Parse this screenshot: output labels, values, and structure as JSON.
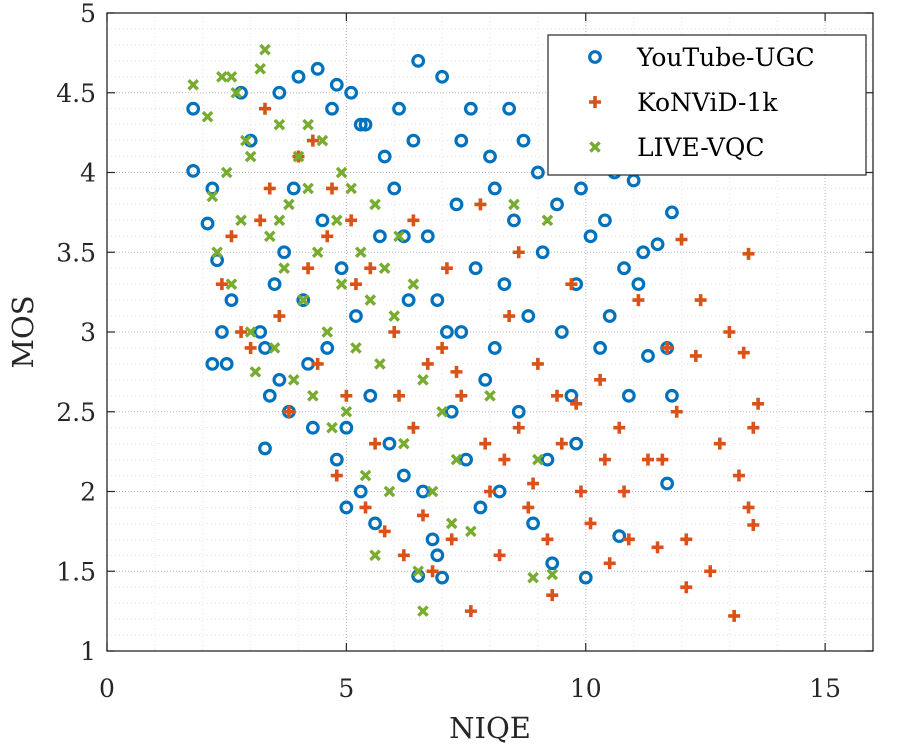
{
  "chart_data": {
    "type": "scatter",
    "title": "",
    "xlabel": "NIQE",
    "ylabel": "MOS",
    "xlim": [
      0,
      16
    ],
    "ylim": [
      1,
      5
    ],
    "xticks": [
      0,
      5,
      10,
      15
    ],
    "yticks": [
      1,
      1.5,
      2,
      2.5,
      3,
      3.5,
      4,
      4.5,
      5
    ],
    "xtick_labels": [
      "0",
      "5",
      "10",
      "15"
    ],
    "ytick_labels": [
      "1",
      "1.5",
      "2",
      "2.5",
      "3",
      "3.5",
      "4",
      "4.5",
      "5"
    ],
    "grid": "major and minor, dotted",
    "legend_position": "top-right",
    "series": [
      {
        "name": "YouTube-UGC",
        "marker": "circle",
        "color": "#0072BD",
        "points": [
          [
            1.8,
            4.01
          ],
          [
            1.8,
            4.4
          ],
          [
            2.2,
            3.9
          ],
          [
            2.1,
            3.68
          ],
          [
            2.3,
            3.45
          ],
          [
            2.2,
            2.8
          ],
          [
            2.4,
            3.0
          ],
          [
            2.5,
            2.8
          ],
          [
            2.6,
            3.2
          ],
          [
            2.8,
            4.5
          ],
          [
            3.0,
            4.2
          ],
          [
            3.2,
            3.0
          ],
          [
            3.3,
            2.9
          ],
          [
            3.3,
            2.27
          ],
          [
            3.4,
            2.6
          ],
          [
            3.5,
            3.3
          ],
          [
            3.6,
            2.7
          ],
          [
            3.7,
            3.5
          ],
          [
            3.8,
            2.5
          ],
          [
            3.9,
            3.9
          ],
          [
            4.0,
            4.6
          ],
          [
            4.1,
            3.2
          ],
          [
            4.2,
            2.8
          ],
          [
            4.3,
            2.4
          ],
          [
            4.4,
            4.65
          ],
          [
            4.5,
            3.7
          ],
          [
            4.6,
            2.9
          ],
          [
            4.7,
            4.4
          ],
          [
            4.8,
            2.2
          ],
          [
            4.9,
            3.4
          ],
          [
            5.0,
            1.9
          ],
          [
            5.0,
            2.4
          ],
          [
            5.1,
            4.5
          ],
          [
            5.2,
            3.1
          ],
          [
            5.3,
            2.0
          ],
          [
            5.4,
            4.3
          ],
          [
            5.5,
            2.6
          ],
          [
            5.6,
            1.8
          ],
          [
            5.7,
            3.6
          ],
          [
            5.8,
            4.1
          ],
          [
            5.9,
            2.3
          ],
          [
            6.0,
            3.9
          ],
          [
            6.1,
            4.4
          ],
          [
            6.2,
            2.1
          ],
          [
            6.3,
            3.2
          ],
          [
            6.4,
            4.2
          ],
          [
            6.5,
            4.7
          ],
          [
            6.5,
            1.47
          ],
          [
            6.6,
            2.0
          ],
          [
            6.7,
            3.6
          ],
          [
            6.8,
            1.7
          ],
          [
            6.9,
            1.6
          ],
          [
            7.0,
            1.46
          ],
          [
            7.0,
            4.6
          ],
          [
            7.1,
            3.0
          ],
          [
            7.2,
            2.5
          ],
          [
            7.3,
            3.8
          ],
          [
            7.4,
            4.2
          ],
          [
            7.5,
            2.2
          ],
          [
            7.6,
            4.4
          ],
          [
            7.7,
            3.4
          ],
          [
            7.8,
            1.9
          ],
          [
            7.9,
            2.7
          ],
          [
            8.0,
            4.1
          ],
          [
            8.1,
            3.9
          ],
          [
            8.2,
            2.0
          ],
          [
            8.3,
            3.3
          ],
          [
            8.4,
            4.4
          ],
          [
            8.5,
            3.7
          ],
          [
            8.6,
            2.5
          ],
          [
            8.7,
            4.2
          ],
          [
            8.8,
            3.1
          ],
          [
            8.9,
            1.8
          ],
          [
            9.0,
            4.0
          ],
          [
            9.1,
            3.5
          ],
          [
            9.2,
            2.2
          ],
          [
            9.3,
            1.55
          ],
          [
            9.4,
            3.8
          ],
          [
            9.5,
            3.0
          ],
          [
            9.6,
            4.1
          ],
          [
            9.7,
            2.6
          ],
          [
            9.8,
            3.3
          ],
          [
            9.9,
            3.9
          ],
          [
            10.0,
            1.46
          ],
          [
            10.1,
            3.6
          ],
          [
            10.2,
            4.1
          ],
          [
            10.3,
            2.9
          ],
          [
            10.4,
            3.7
          ],
          [
            10.5,
            3.1
          ],
          [
            10.6,
            4.0
          ],
          [
            10.7,
            1.72
          ],
          [
            10.8,
            3.4
          ],
          [
            10.9,
            2.6
          ],
          [
            11.0,
            3.95
          ],
          [
            11.1,
            3.3
          ],
          [
            11.2,
            3.5
          ],
          [
            11.3,
            2.85
          ],
          [
            11.5,
            3.55
          ],
          [
            11.7,
            2.05
          ],
          [
            11.7,
            2.9
          ],
          [
            11.8,
            2.6
          ],
          [
            11.8,
            3.75
          ],
          [
            3.6,
            4.5
          ],
          [
            4.8,
            4.55
          ],
          [
            5.3,
            4.3
          ],
          [
            6.2,
            3.6
          ],
          [
            6.9,
            3.2
          ],
          [
            7.4,
            3.0
          ],
          [
            8.1,
            2.9
          ],
          [
            9.8,
            2.3
          ]
        ]
      },
      {
        "name": "KoNViD-1k",
        "marker": "plus",
        "color": "#D95319",
        "points": [
          [
            2.4,
            3.3
          ],
          [
            2.6,
            3.6
          ],
          [
            2.8,
            3.0
          ],
          [
            3.0,
            2.9
          ],
          [
            3.2,
            3.7
          ],
          [
            3.4,
            3.9
          ],
          [
            3.6,
            3.1
          ],
          [
            3.8,
            2.5
          ],
          [
            4.0,
            4.1
          ],
          [
            4.2,
            3.4
          ],
          [
            4.4,
            2.8
          ],
          [
            4.6,
            3.6
          ],
          [
            4.8,
            2.1
          ],
          [
            5.0,
            2.6
          ],
          [
            5.2,
            3.3
          ],
          [
            5.4,
            1.9
          ],
          [
            5.6,
            2.3
          ],
          [
            5.8,
            1.75
          ],
          [
            6.0,
            3.0
          ],
          [
            6.2,
            1.6
          ],
          [
            6.4,
            2.4
          ],
          [
            6.6,
            1.85
          ],
          [
            6.8,
            1.5
          ],
          [
            7.0,
            2.9
          ],
          [
            7.2,
            1.7
          ],
          [
            7.4,
            2.6
          ],
          [
            7.6,
            1.25
          ],
          [
            7.8,
            3.8
          ],
          [
            8.0,
            2.0
          ],
          [
            8.2,
            1.6
          ],
          [
            8.4,
            3.1
          ],
          [
            8.6,
            2.4
          ],
          [
            8.8,
            1.9
          ],
          [
            9.0,
            2.8
          ],
          [
            9.2,
            1.7
          ],
          [
            9.3,
            1.35
          ],
          [
            9.5,
            2.3
          ],
          [
            9.7,
            3.3
          ],
          [
            9.9,
            2.0
          ],
          [
            10.1,
            1.8
          ],
          [
            10.3,
            2.7
          ],
          [
            10.5,
            1.55
          ],
          [
            10.7,
            2.4
          ],
          [
            10.9,
            1.7
          ],
          [
            11.1,
            3.2
          ],
          [
            11.3,
            2.2
          ],
          [
            11.5,
            1.65
          ],
          [
            11.7,
            2.9
          ],
          [
            11.9,
            2.5
          ],
          [
            12.1,
            1.7
          ],
          [
            12.1,
            1.4
          ],
          [
            12.3,
            2.85
          ],
          [
            12.4,
            3.2
          ],
          [
            12.6,
            1.5
          ],
          [
            12.8,
            2.3
          ],
          [
            13.0,
            3.0
          ],
          [
            13.1,
            1.22
          ],
          [
            13.2,
            2.1
          ],
          [
            13.3,
            2.87
          ],
          [
            13.4,
            3.49
          ],
          [
            13.5,
            1.79
          ],
          [
            13.5,
            2.4
          ],
          [
            13.6,
            2.55
          ],
          [
            13.4,
            1.9
          ],
          [
            12.0,
            3.58
          ],
          [
            11.6,
            2.2
          ],
          [
            10.8,
            2.0
          ],
          [
            9.8,
            2.55
          ],
          [
            8.9,
            2.05
          ],
          [
            8.3,
            2.2
          ],
          [
            7.9,
            2.3
          ],
          [
            7.3,
            2.75
          ],
          [
            6.7,
            2.8
          ],
          [
            6.1,
            2.6
          ],
          [
            5.5,
            3.4
          ],
          [
            5.1,
            3.7
          ],
          [
            4.7,
            3.9
          ],
          [
            4.3,
            4.2
          ],
          [
            3.3,
            4.4
          ],
          [
            6.4,
            3.7
          ],
          [
            7.1,
            3.4
          ],
          [
            8.6,
            3.5
          ],
          [
            9.4,
            2.6
          ],
          [
            10.4,
            2.2
          ]
        ]
      },
      {
        "name": "LIVE-VQC",
        "marker": "cross",
        "color": "#77AC30",
        "points": [
          [
            1.8,
            4.55
          ],
          [
            2.1,
            4.35
          ],
          [
            2.2,
            3.85
          ],
          [
            2.3,
            3.5
          ],
          [
            2.4,
            4.6
          ],
          [
            2.5,
            4.0
          ],
          [
            2.6,
            3.3
          ],
          [
            2.7,
            4.5
          ],
          [
            2.8,
            3.7
          ],
          [
            2.9,
            4.2
          ],
          [
            3.0,
            3.0
          ],
          [
            3.1,
            2.75
          ],
          [
            3.2,
            4.65
          ],
          [
            3.3,
            4.77
          ],
          [
            3.4,
            3.6
          ],
          [
            3.5,
            2.9
          ],
          [
            3.6,
            4.3
          ],
          [
            3.7,
            3.4
          ],
          [
            3.8,
            3.8
          ],
          [
            3.9,
            2.7
          ],
          [
            4.0,
            4.1
          ],
          [
            4.1,
            3.2
          ],
          [
            4.2,
            3.9
          ],
          [
            4.3,
            2.6
          ],
          [
            4.4,
            3.5
          ],
          [
            4.5,
            4.2
          ],
          [
            4.6,
            3.0
          ],
          [
            4.7,
            2.4
          ],
          [
            4.8,
            3.7
          ],
          [
            4.9,
            3.3
          ],
          [
            5.0,
            2.5
          ],
          [
            5.1,
            3.9
          ],
          [
            5.2,
            2.9
          ],
          [
            5.3,
            3.5
          ],
          [
            5.4,
            2.1
          ],
          [
            5.5,
            3.2
          ],
          [
            5.6,
            1.6
          ],
          [
            5.7,
            2.8
          ],
          [
            5.8,
            3.4
          ],
          [
            5.9,
            2.0
          ],
          [
            6.0,
            3.1
          ],
          [
            6.2,
            2.3
          ],
          [
            6.4,
            3.3
          ],
          [
            6.5,
            1.5
          ],
          [
            6.6,
            1.25
          ],
          [
            6.8,
            2.0
          ],
          [
            7.0,
            2.5
          ],
          [
            7.2,
            1.8
          ],
          [
            7.6,
            1.75
          ],
          [
            8.0,
            2.6
          ],
          [
            8.5,
            3.8
          ],
          [
            8.9,
            1.46
          ],
          [
            9.0,
            2.2
          ],
          [
            9.3,
            1.48
          ],
          [
            9.2,
            3.7
          ],
          [
            2.6,
            4.6
          ],
          [
            3.0,
            4.1
          ],
          [
            3.6,
            3.7
          ],
          [
            4.2,
            4.3
          ],
          [
            4.9,
            4.0
          ],
          [
            5.6,
            3.8
          ],
          [
            6.1,
            3.6
          ],
          [
            6.6,
            2.7
          ],
          [
            7.3,
            2.2
          ]
        ]
      }
    ]
  }
}
